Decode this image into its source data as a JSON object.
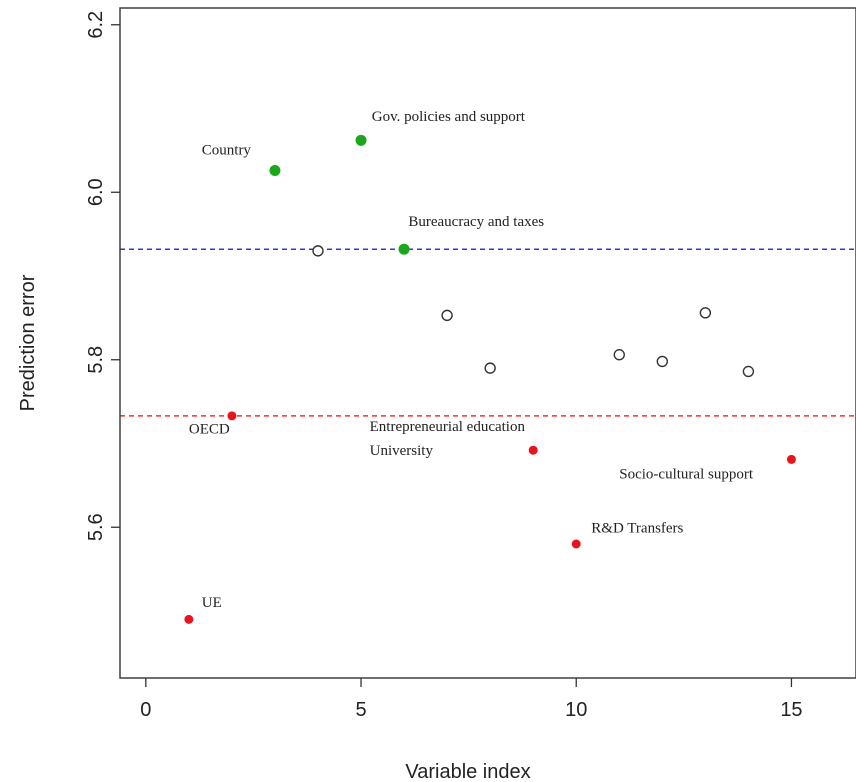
{
  "chart_data": {
    "type": "scatter",
    "xlabel": "Variable index",
    "ylabel": "Prediction error",
    "xlim": [
      -0.6,
      16.5
    ],
    "ylim": [
      5.42,
      6.22
    ],
    "x_ticks": [
      0,
      5,
      10,
      15
    ],
    "y_ticks": [
      5.6,
      5.8,
      6.0,
      6.2
    ],
    "grid": false,
    "reference_lines": [
      {
        "y": 5.932,
        "color": "#3333ee",
        "style": "dashed"
      },
      {
        "y": 5.733,
        "color": "#ee3333",
        "style": "dashed"
      }
    ],
    "points": [
      {
        "x": 1,
        "y": 5.49,
        "style": "red"
      },
      {
        "x": 2,
        "y": 5.733,
        "style": "red"
      },
      {
        "x": 3,
        "y": 6.026,
        "style": "green"
      },
      {
        "x": 4,
        "y": 5.93,
        "style": "open"
      },
      {
        "x": 5,
        "y": 6.062,
        "style": "green"
      },
      {
        "x": 6,
        "y": 5.932,
        "style": "green"
      },
      {
        "x": 7,
        "y": 5.853,
        "style": "open"
      },
      {
        "x": 8,
        "y": 5.79,
        "style": "open"
      },
      {
        "x": 9,
        "y": 5.692,
        "style": "red"
      },
      {
        "x": 10,
        "y": 5.58,
        "style": "red"
      },
      {
        "x": 11,
        "y": 5.806,
        "style": "open"
      },
      {
        "x": 12,
        "y": 5.798,
        "style": "open"
      },
      {
        "x": 13,
        "y": 5.856,
        "style": "open"
      },
      {
        "x": 14,
        "y": 5.786,
        "style": "open"
      },
      {
        "x": 15,
        "y": 5.681,
        "style": "red"
      }
    ],
    "annotations": [
      {
        "text": "UE",
        "x": 1.3,
        "y": 5.505,
        "anchor": "start"
      },
      {
        "text": "OECD",
        "x": 1.0,
        "y": 5.712,
        "anchor": "start"
      },
      {
        "text": "Country",
        "x": 1.3,
        "y": 6.045,
        "anchor": "start"
      },
      {
        "text": "Gov. policies and support",
        "x": 5.25,
        "y": 6.085,
        "anchor": "start"
      },
      {
        "text": "Bureaucracy and taxes",
        "x": 6.1,
        "y": 5.96,
        "anchor": "start"
      },
      {
        "text": "Entrepreneurial education",
        "x": 5.2,
        "y": 5.715,
        "anchor": "start"
      },
      {
        "text": "University",
        "x": 5.2,
        "y": 5.686,
        "anchor": "start"
      },
      {
        "text": "R&D Transfers",
        "x": 10.35,
        "y": 5.594,
        "anchor": "start"
      },
      {
        "text": "Socio-cultural support",
        "x": 11.0,
        "y": 5.658,
        "anchor": "start"
      }
    ],
    "colors": {
      "red": "#e8141c",
      "green": "#1aa81a",
      "open_stroke": "#333333",
      "axis": "#333333"
    }
  }
}
